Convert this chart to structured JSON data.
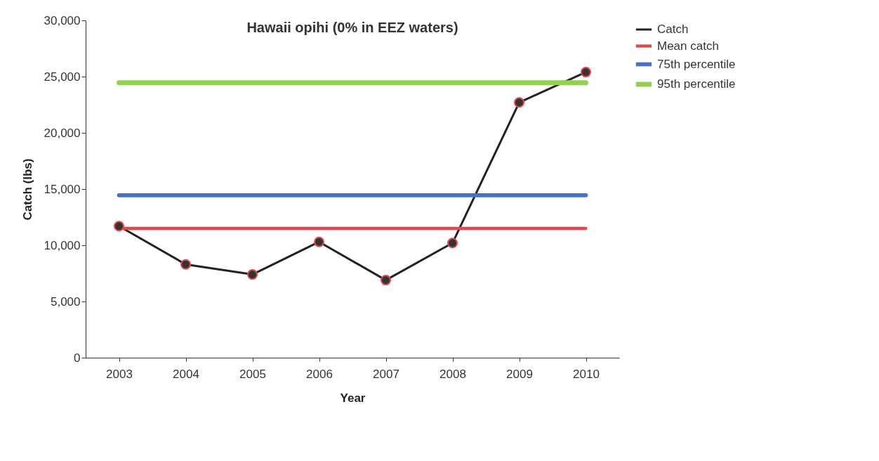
{
  "chart_data": {
    "type": "line",
    "title": "Hawaii opihi (0% in EEZ waters)",
    "xlabel": "Year",
    "ylabel": "Catch (lbs)",
    "categories": [
      "2003",
      "2004",
      "2005",
      "2006",
      "2007",
      "2008",
      "2009",
      "2010"
    ],
    "series": [
      {
        "name": "Catch",
        "color": "#222222",
        "marker": "circle",
        "values": [
          11700,
          8300,
          7400,
          10300,
          6900,
          10200,
          22700,
          25400
        ]
      },
      {
        "name": "Mean catch",
        "color": "#e8474a",
        "values": [
          11500,
          11500,
          11500,
          11500,
          11500,
          11500,
          11500,
          11500
        ]
      },
      {
        "name": "75th percentile",
        "color": "#4472c4",
        "values": [
          14450,
          14450,
          14450,
          14450,
          14450,
          14450,
          14450,
          14450
        ]
      },
      {
        "name": "95th percentile",
        "color": "#92d050",
        "values": [
          24450,
          24450,
          24450,
          24450,
          24450,
          24450,
          24450,
          24450
        ]
      }
    ],
    "ylim": [
      0,
      30000
    ],
    "yticks": [
      0,
      {
        "value": 5000,
        "label": "5,000"
      },
      {
        "value": 10000,
        "label": "10,000"
      },
      {
        "value": 15000,
        "label": "15,000"
      },
      {
        "value": 20000,
        "label": "20,000"
      },
      {
        "value": 25000,
        "label": "25,000"
      },
      {
        "value": 30000,
        "label": "30,000"
      }
    ],
    "grid": false,
    "legend": "top right"
  }
}
